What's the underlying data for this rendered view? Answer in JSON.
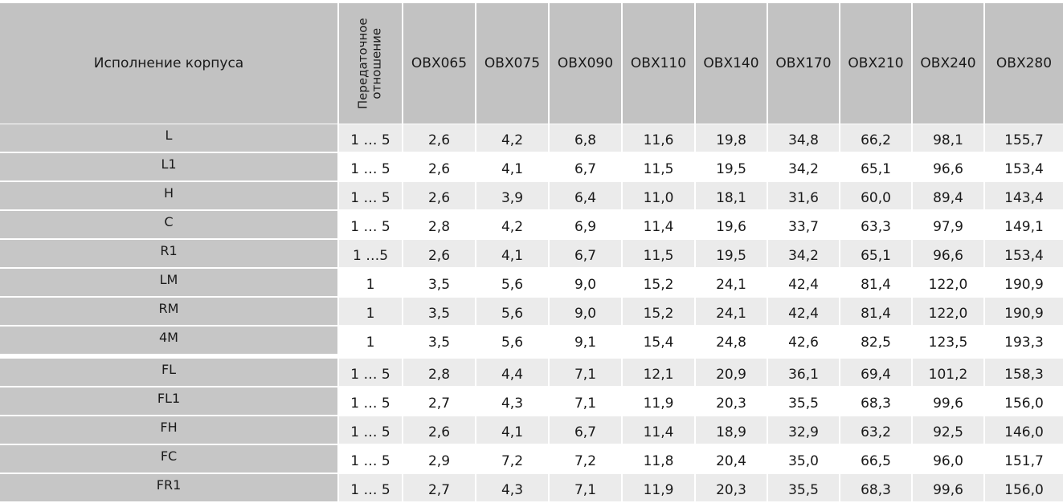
{
  "header": {
    "housing_label": "Исполнение корпуса",
    "ratio_label_line1": "Передаточное",
    "ratio_label_line2": "отношение",
    "models": [
      "OBX065",
      "OBX075",
      "OBX090",
      "OBX110",
      "OBX140",
      "OBX170",
      "OBX210",
      "OBX240",
      "OBX280"
    ]
  },
  "rows": [
    {
      "name": "L",
      "ratio": "1 … 5",
      "values": [
        "2,6",
        "4,2",
        "6,8",
        "11,6",
        "19,8",
        "34,8",
        "66,2",
        "98,1",
        "155,7"
      ]
    },
    {
      "name": "L1",
      "ratio": "1 … 5",
      "values": [
        "2,6",
        "4,1",
        "6,7",
        "11,5",
        "19,5",
        "34,2",
        "65,1",
        "96,6",
        "153,4"
      ]
    },
    {
      "name": "H",
      "ratio": "1 … 5",
      "values": [
        "2,6",
        "3,9",
        "6,4",
        "11,0",
        "18,1",
        "31,6",
        "60,0",
        "89,4",
        "143,4"
      ]
    },
    {
      "name": "C",
      "ratio": "1 … 5",
      "values": [
        "2,8",
        "4,2",
        "6,9",
        "11,4",
        "19,6",
        "33,7",
        "63,3",
        "97,9",
        "149,1"
      ]
    },
    {
      "name": "R1",
      "ratio": "1 …5",
      "values": [
        "2,6",
        "4,1",
        "6,7",
        "11,5",
        "19,5",
        "34,2",
        "65,1",
        "96,6",
        "153,4"
      ]
    },
    {
      "name": "LM",
      "ratio": "1",
      "values": [
        "3,5",
        "5,6",
        "9,0",
        "15,2",
        "24,1",
        "42,4",
        "81,4",
        "122,0",
        "190,9"
      ]
    },
    {
      "name": "RM",
      "ratio": "1",
      "values": [
        "3,5",
        "5,6",
        "9,0",
        "15,2",
        "24,1",
        "42,4",
        "81,4",
        "122,0",
        "190,9"
      ]
    },
    {
      "name": "4M",
      "ratio": "1",
      "values": [
        "3,5",
        "5,6",
        "9,1",
        "15,4",
        "24,8",
        "42,6",
        "82,5",
        "123,5",
        "193,3"
      ]
    },
    {
      "name": "FL",
      "ratio": "1 … 5",
      "values": [
        "2,8",
        "4,4",
        "7,1",
        "12,1",
        "20,9",
        "36,1",
        "69,4",
        "101,2",
        "158,3"
      ]
    },
    {
      "name": "FL1",
      "ratio": "1 … 5",
      "values": [
        "2,7",
        "4,3",
        "7,1",
        "11,9",
        "20,3",
        "35,5",
        "68,3",
        "99,6",
        "156,0"
      ]
    },
    {
      "name": "FH",
      "ratio": "1 … 5",
      "values": [
        "2,6",
        "4,1",
        "6,7",
        "11,4",
        "18,9",
        "32,9",
        "63,2",
        "92,5",
        "146,0"
      ]
    },
    {
      "name": "FC",
      "ratio": "1 … 5",
      "values": [
        "2,9",
        "7,2",
        "7,2",
        "11,8",
        "20,4",
        "35,0",
        "66,5",
        "96,0",
        "151,7"
      ]
    },
    {
      "name": "FR1",
      "ratio": "1 … 5",
      "values": [
        "2,7",
        "4,3",
        "7,1",
        "11,9",
        "20,3",
        "35,5",
        "68,3",
        "99,6",
        "156,0"
      ]
    }
  ],
  "colors": {
    "header_bg": "#c2c2c2",
    "name_bg": "#c6c6c6",
    "row_alt_bg": "#ebebeb",
    "row_bg": "#ffffff"
  }
}
